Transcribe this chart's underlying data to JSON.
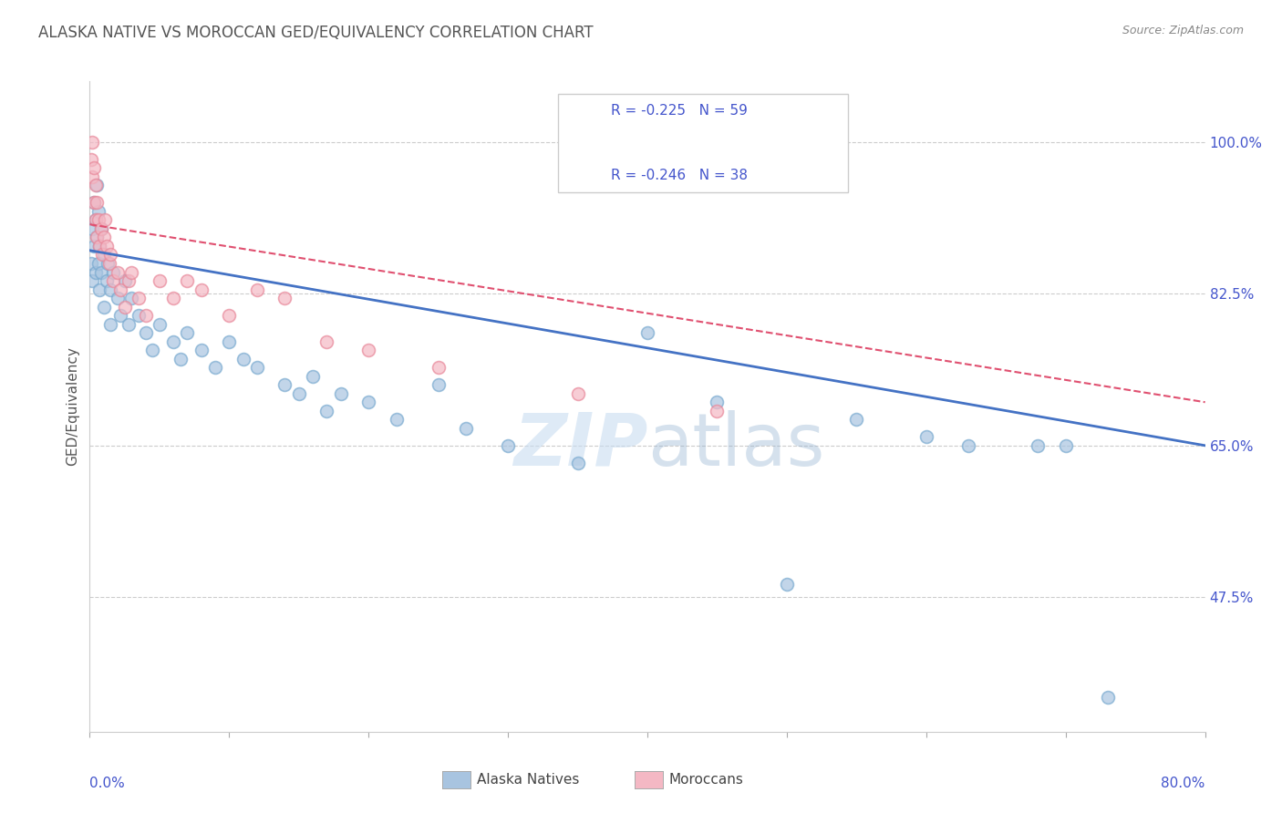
{
  "title": "ALASKA NATIVE VS MOROCCAN GED/EQUIVALENCY CORRELATION CHART",
  "source": "Source: ZipAtlas.com",
  "ylabel": "GED/Equivalency",
  "legend_blue_label": "Alaska Natives",
  "legend_pink_label": "Moroccans",
  "R_blue": -0.225,
  "N_blue": 59,
  "R_pink": -0.246,
  "N_pink": 38,
  "blue_color": "#A8C4E0",
  "blue_edge_color": "#7AAAD0",
  "pink_color": "#F4B8C4",
  "pink_edge_color": "#E8889A",
  "blue_line_color": "#4472C4",
  "pink_line_color": "#E05070",
  "watermark_color": "#C8DCF0",
  "bg_color": "#FFFFFF",
  "grid_color": "#CCCCCC",
  "title_color": "#555555",
  "axis_label_color": "#4455CC",
  "yticks": [
    100.0,
    82.5,
    65.0,
    47.5
  ],
  "ytick_labels": [
    "100.0%",
    "82.5%",
    "65.0%",
    "47.5%"
  ],
  "xmin": 0.0,
  "xmax": 80.0,
  "ymin": 32.0,
  "ymax": 107.0,
  "blue_line_x": [
    0.0,
    80.0
  ],
  "blue_line_y": [
    87.5,
    65.0
  ],
  "pink_line_x": [
    0.0,
    80.0
  ],
  "pink_line_y": [
    90.5,
    70.0
  ],
  "blue_scatter_x": [
    0.1,
    0.2,
    0.2,
    0.3,
    0.3,
    0.4,
    0.4,
    0.5,
    0.5,
    0.6,
    0.6,
    0.7,
    0.7,
    0.8,
    0.8,
    1.0,
    1.0,
    1.2,
    1.3,
    1.5,
    1.5,
    1.7,
    2.0,
    2.2,
    2.5,
    2.8,
    3.0,
    3.5,
    4.0,
    4.5,
    5.0,
    6.0,
    6.5,
    7.0,
    8.0,
    9.0,
    10.0,
    11.0,
    12.0,
    14.0,
    15.0,
    16.0,
    17.0,
    18.0,
    20.0,
    22.0,
    25.0,
    27.0,
    30.0,
    35.0,
    40.0,
    45.0,
    50.0,
    55.0,
    60.0,
    63.0,
    68.0,
    70.0,
    73.0
  ],
  "blue_scatter_y": [
    86.0,
    90.0,
    84.0,
    93.0,
    88.0,
    91.0,
    85.0,
    95.0,
    89.0,
    92.0,
    86.0,
    88.0,
    83.0,
    90.0,
    85.0,
    87.0,
    81.0,
    84.0,
    86.0,
    83.0,
    79.0,
    85.0,
    82.0,
    80.0,
    84.0,
    79.0,
    82.0,
    80.0,
    78.0,
    76.0,
    79.0,
    77.0,
    75.0,
    78.0,
    76.0,
    74.0,
    77.0,
    75.0,
    74.0,
    72.0,
    71.0,
    73.0,
    69.0,
    71.0,
    70.0,
    68.0,
    72.0,
    67.0,
    65.0,
    63.0,
    78.0,
    70.0,
    49.0,
    68.0,
    66.0,
    65.0,
    65.0,
    65.0,
    36.0
  ],
  "pink_scatter_x": [
    0.1,
    0.2,
    0.2,
    0.3,
    0.3,
    0.4,
    0.4,
    0.5,
    0.5,
    0.6,
    0.7,
    0.8,
    0.9,
    1.0,
    1.1,
    1.2,
    1.4,
    1.5,
    1.7,
    2.0,
    2.2,
    2.5,
    2.8,
    3.0,
    3.5,
    4.0,
    5.0,
    6.0,
    7.0,
    8.0,
    10.0,
    12.0,
    14.0,
    17.0,
    20.0,
    25.0,
    35.0,
    45.0
  ],
  "pink_scatter_y": [
    98.0,
    100.0,
    96.0,
    97.0,
    93.0,
    95.0,
    91.0,
    93.0,
    89.0,
    91.0,
    88.0,
    90.0,
    87.0,
    89.0,
    91.0,
    88.0,
    86.0,
    87.0,
    84.0,
    85.0,
    83.0,
    81.0,
    84.0,
    85.0,
    82.0,
    80.0,
    84.0,
    82.0,
    84.0,
    83.0,
    80.0,
    83.0,
    82.0,
    77.0,
    76.0,
    74.0,
    71.0,
    69.0
  ]
}
